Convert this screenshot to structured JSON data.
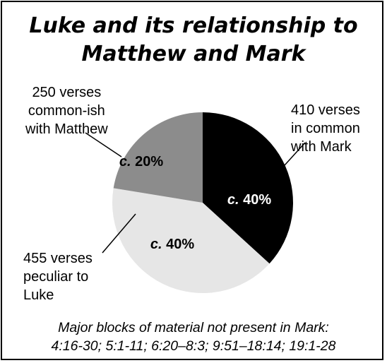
{
  "chart_data": {
    "type": "pie",
    "title": "Luke and its relationship to Matthew and Mark",
    "title_lines": [
      "Luke and its relationship to",
      "Matthew and Mark"
    ],
    "slices": [
      {
        "label_lines": [
          "410 verses",
          "in common",
          "with Mark"
        ],
        "verses": 410,
        "value": 40,
        "pct_prefix": "c.",
        "pct_text": "40%",
        "color": "#000000",
        "text_color": "#ffffff"
      },
      {
        "label_lines": [
          "455 verses",
          "peculiar to",
          "Luke"
        ],
        "verses": 455,
        "value": 40,
        "pct_prefix": "c.",
        "pct_text": "40%",
        "color": "#e6e6e6",
        "text_color": "#000000"
      },
      {
        "label_lines": [
          "250 verses",
          "common-ish",
          "with Matthew"
        ],
        "verses": 250,
        "value": 20,
        "pct_prefix": "c.",
        "pct_text": "20%",
        "color": "#8c8c8c",
        "text_color": "#000000"
      }
    ],
    "footer_lines": [
      "Major blocks of material not present in Mark:",
      "4:16-30; 5:1-11; 6:20–8:3; 9:51–18:14; 19:1-28"
    ]
  }
}
